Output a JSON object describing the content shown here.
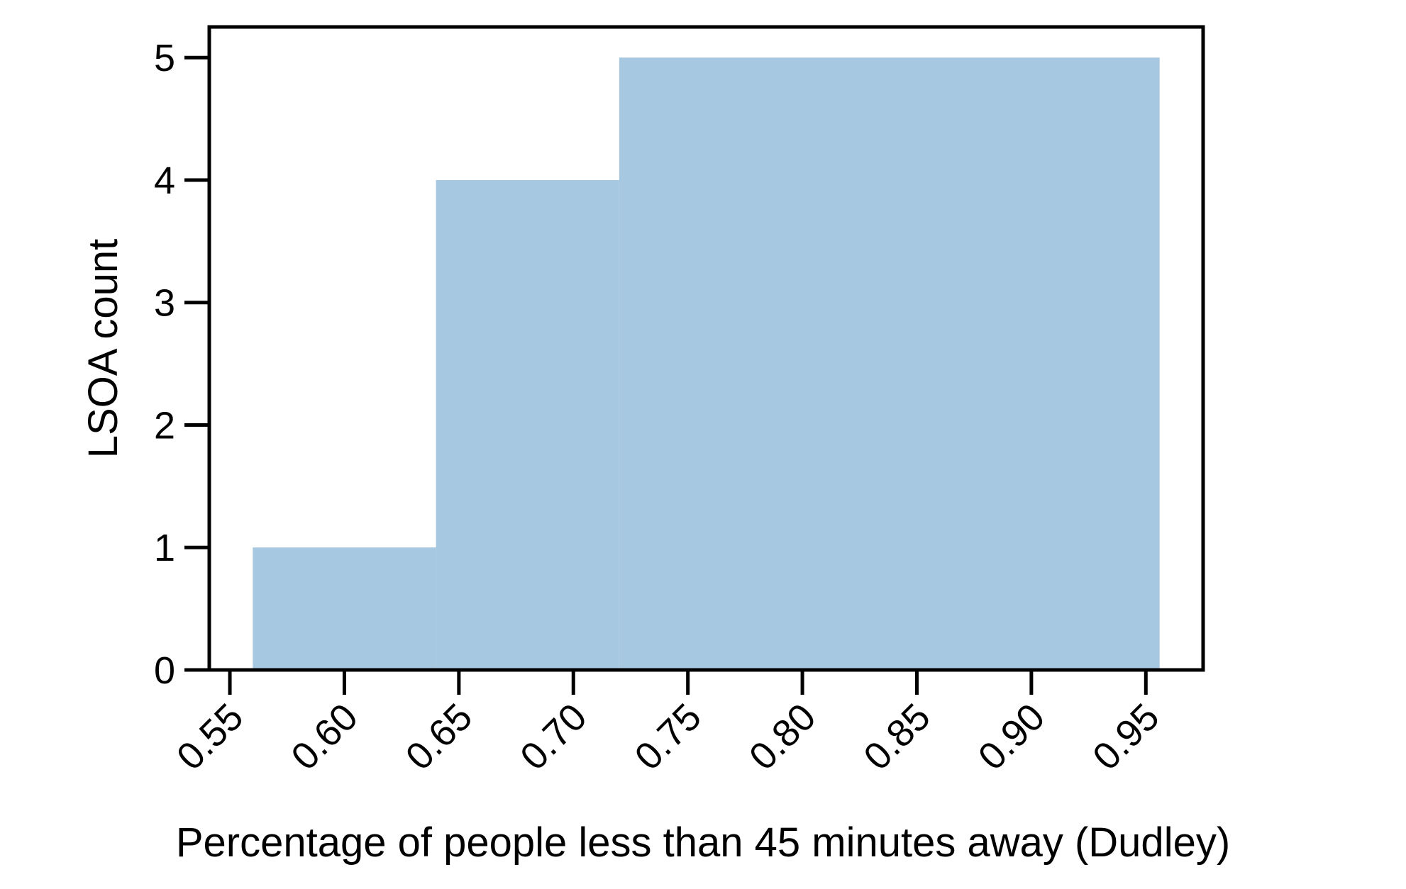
{
  "chart_data": {
    "type": "bar",
    "title": "",
    "xlabel": "Percentage of people less than 45 minutes away (Dudley)",
    "ylabel": "LSOA count",
    "bins": [
      {
        "x0": 0.56,
        "x1": 0.64,
        "count": 1
      },
      {
        "x0": 0.64,
        "x1": 0.72,
        "count": 4
      },
      {
        "x0": 0.72,
        "x1": 0.956,
        "count": 5
      }
    ],
    "xticks": [
      0.55,
      0.6,
      0.65,
      0.7,
      0.75,
      0.8,
      0.85,
      0.9,
      0.95
    ],
    "xtick_labels": [
      "0.55",
      "0.60",
      "0.65",
      "0.70",
      "0.75",
      "0.80",
      "0.85",
      "0.90",
      "0.95"
    ],
    "yticks": [
      0,
      1,
      2,
      3,
      4,
      5
    ],
    "ytick_labels": [
      "0",
      "1",
      "2",
      "3",
      "4",
      "5"
    ],
    "xlim": [
      0.541,
      0.975
    ],
    "ylim": [
      0,
      5.25
    ],
    "bar_color": "#a6c8e0",
    "grid": false,
    "legend": "none"
  }
}
